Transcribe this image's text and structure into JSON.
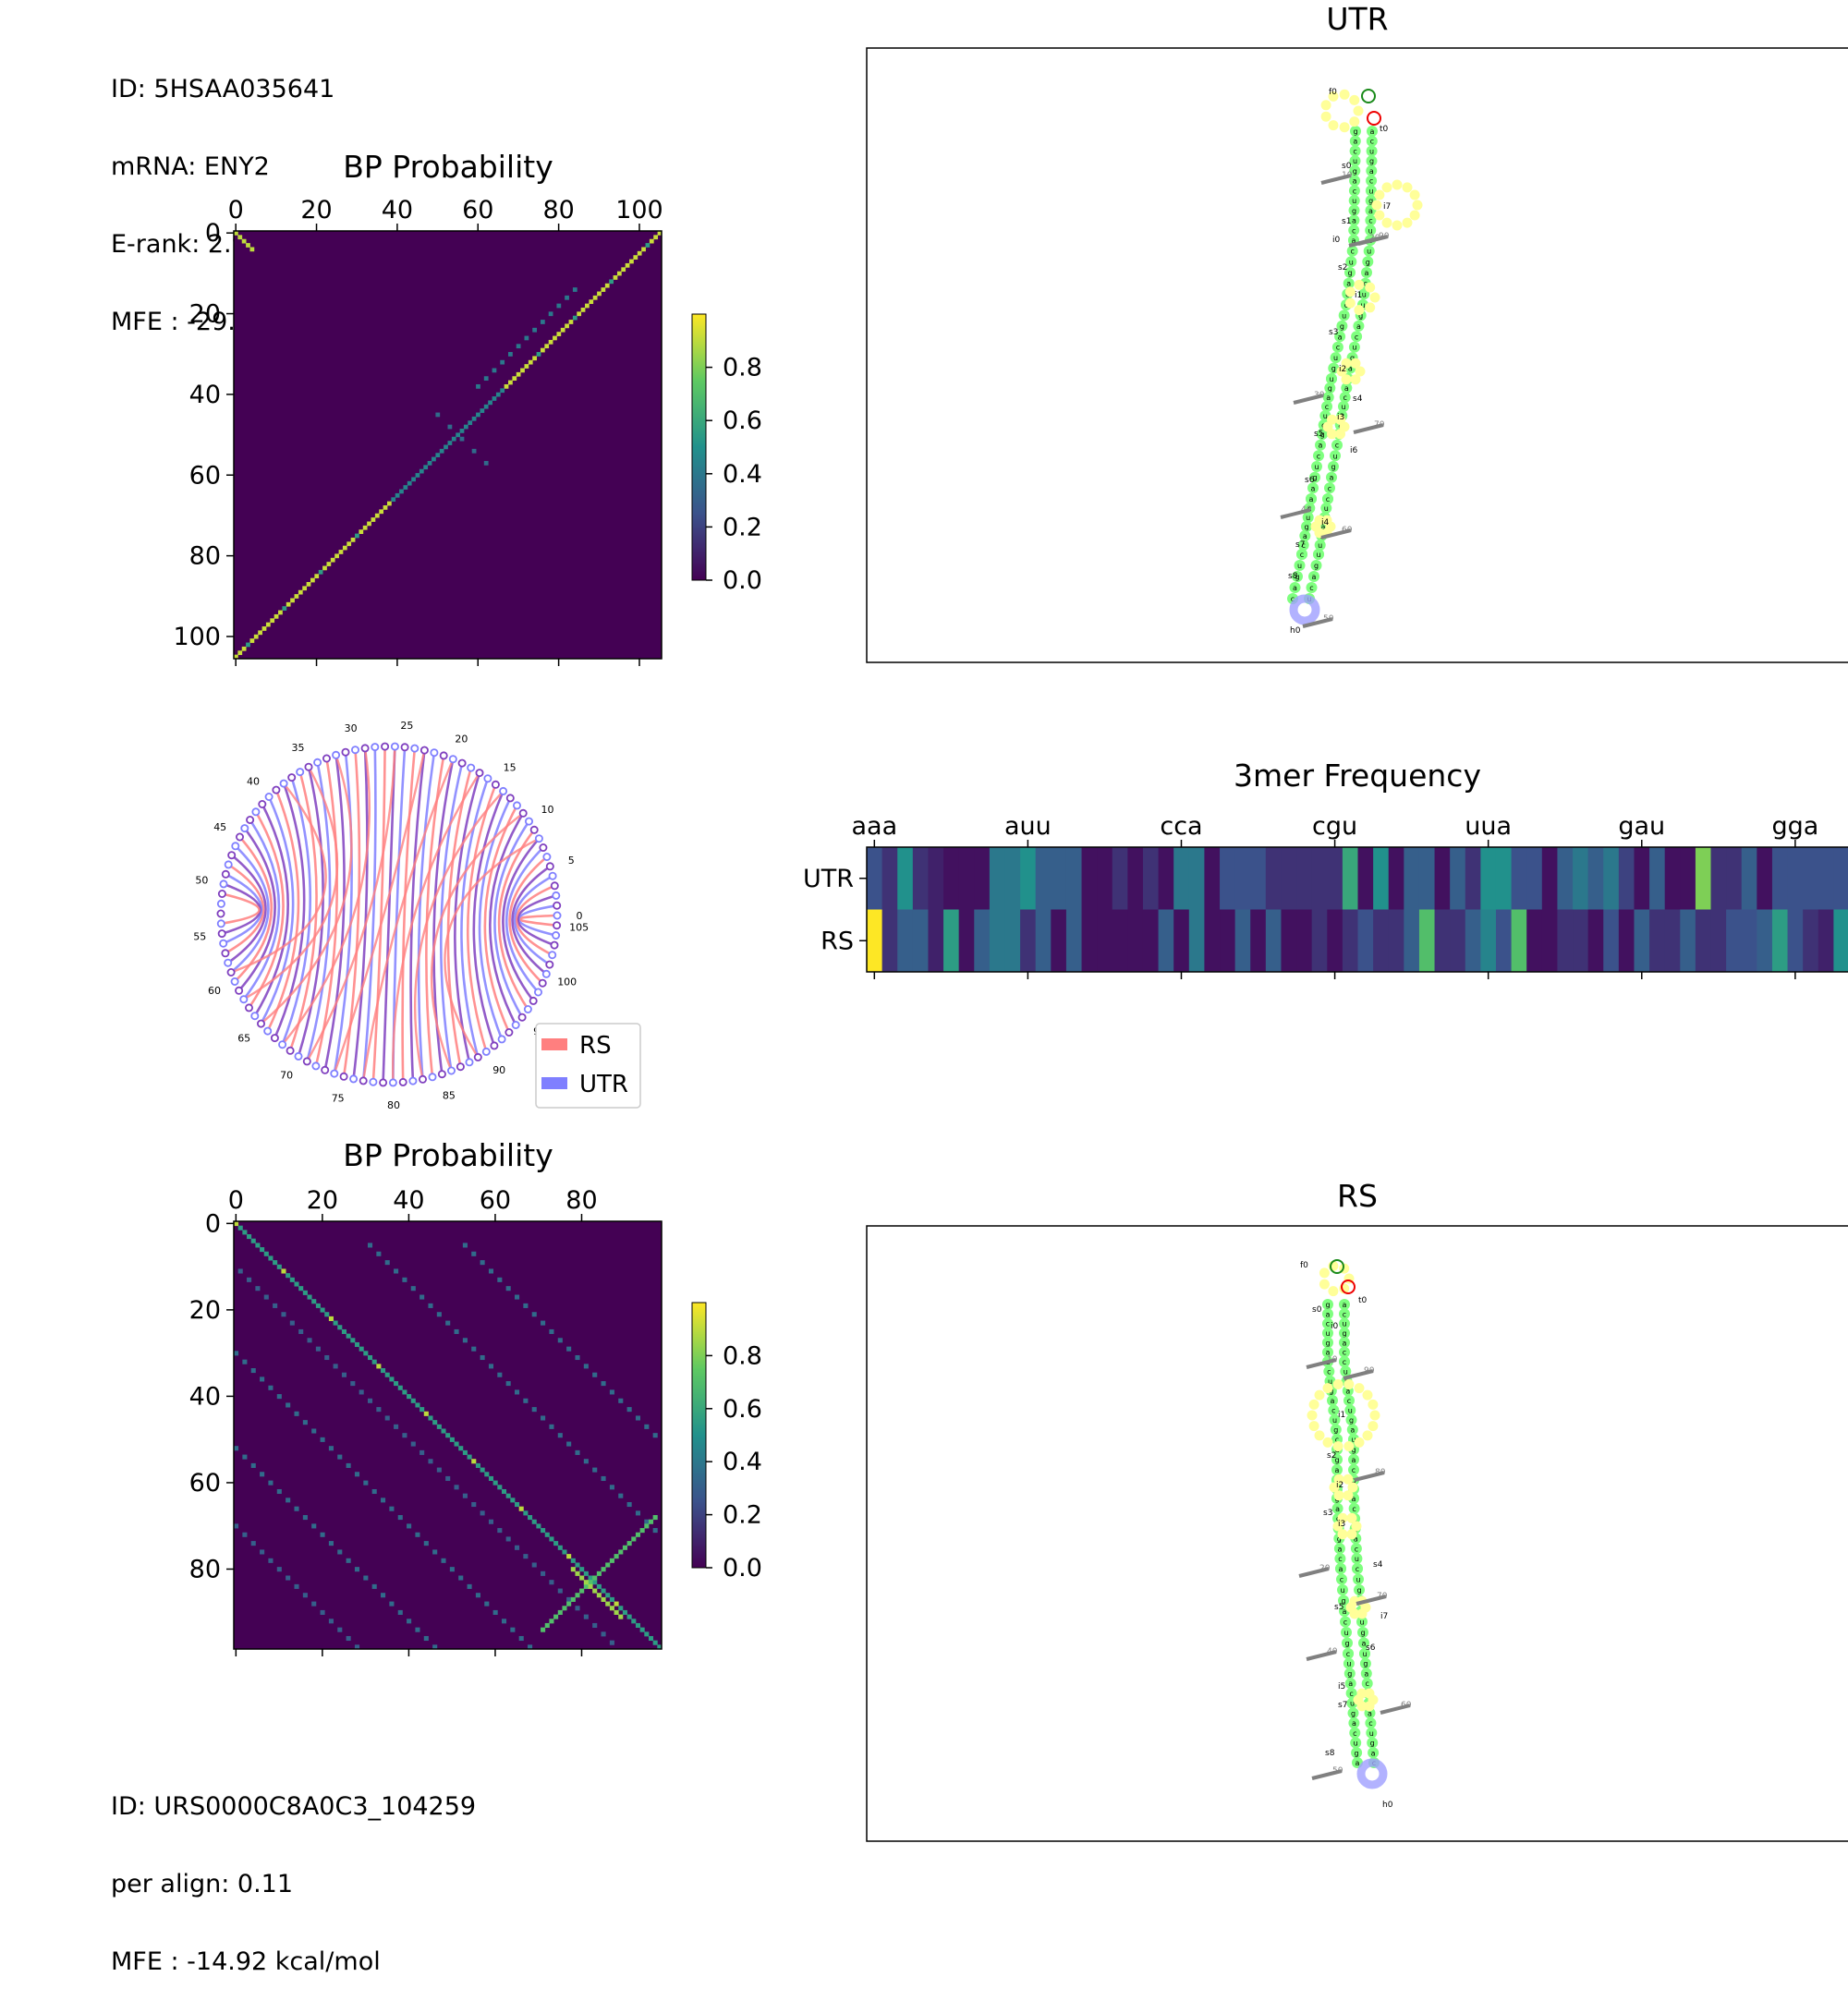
{
  "top_info": {
    "id": "ID: 5HSAA035641",
    "mrna": "mRNA: ENY2",
    "erank": "E-rank: 2.95",
    "mfe": "MFE : -29.82 kcal/mol"
  },
  "bottom_info": {
    "id": "ID: URS0000C8A0C3_104259",
    "align": "per align: 0.11",
    "mfe": "MFE : -14.92 kcal/mol"
  },
  "colors": {
    "rs": "#ff7f7f",
    "utr": "#7f7fff",
    "both": "#7f3fbf",
    "stem": "#7fff7f",
    "loop": "#ffff99",
    "hairpin": "#9f9fff"
  },
  "chart_data": [
    {
      "type": "heatmap",
      "title": "BP Probability",
      "size": 106,
      "xticks": [
        0,
        20,
        40,
        60,
        80,
        100
      ],
      "yticks": [
        0,
        20,
        40,
        60,
        80,
        100
      ],
      "colorbar_ticks": [
        "0.0",
        "0.2",
        "0.4",
        "0.6",
        "0.8"
      ],
      "colorbar_range": [
        0,
        1
      ],
      "structure": "UTR hairpin, diagonal pairs i+j=105, secondary diagonal i+j=97"
    },
    {
      "type": "heatmap",
      "title": "BP Probability",
      "size": 99,
      "xticks": [
        0,
        20,
        40,
        60,
        80
      ],
      "yticks": [
        0,
        20,
        40,
        60,
        80
      ],
      "colorbar_ticks": [
        "0.0",
        "0.2",
        "0.4",
        "0.6",
        "0.8"
      ],
      "colorbar_range": [
        0,
        1
      ]
    },
    {
      "type": "arc",
      "tick_labels": [
        "0",
        "5",
        "10",
        "15",
        "20",
        "25",
        "30",
        "35",
        "40",
        "45",
        "50",
        "55",
        "60",
        "65",
        "70",
        "75",
        "80",
        "85",
        "90",
        "95",
        "100",
        "105"
      ],
      "legend": [
        "RS",
        "UTR"
      ]
    },
    {
      "type": "heatmap",
      "title": "3mer Frequency",
      "rows": [
        "UTR",
        "RS"
      ],
      "xtick_labels": [
        "aaa",
        "auu",
        "cca",
        "cgu",
        "uua",
        "gau",
        "gga"
      ],
      "utr_values": [
        0.25,
        0.15,
        0.5,
        0.15,
        0.1,
        0.05,
        0.05,
        0.05,
        0.4,
        0.4,
        0.5,
        0.3,
        0.3,
        0.3,
        0.05,
        0.05,
        0.15,
        0.05,
        0.15,
        0.05,
        0.4,
        0.4,
        0.05,
        0.25,
        0.25,
        0.25,
        0.15,
        0.15,
        0.15,
        0.15,
        0.15,
        0.6,
        0.05,
        0.5,
        0.05,
        0.3,
        0.3,
        0.05,
        0.3,
        0.15,
        0.5,
        0.5,
        0.25,
        0.25,
        0.05,
        0.3,
        0.4,
        0.3,
        0.4,
        0.2,
        0.05,
        0.3,
        0.05,
        0.05,
        0.8,
        0.15,
        0.15,
        0.3,
        0.05,
        0.25,
        0.25,
        0.25,
        0.25,
        0.25
      ],
      "rs_values": [
        1.0,
        0.15,
        0.3,
        0.3,
        0.1,
        0.55,
        0.05,
        0.3,
        0.4,
        0.4,
        0.15,
        0.3,
        0.05,
        0.3,
        0.05,
        0.05,
        0.05,
        0.05,
        0.05,
        0.3,
        0.05,
        0.4,
        0.05,
        0.05,
        0.3,
        0.05,
        0.3,
        0.05,
        0.05,
        0.15,
        0.05,
        0.15,
        0.25,
        0.15,
        0.15,
        0.3,
        0.7,
        0.15,
        0.15,
        0.3,
        0.45,
        0.25,
        0.7,
        0.05,
        0.05,
        0.15,
        0.15,
        0.05,
        0.25,
        0.05,
        0.3,
        0.15,
        0.15,
        0.3,
        0.15,
        0.15,
        0.25,
        0.25,
        0.3,
        0.55,
        0.25,
        0.15,
        0.1,
        0.5
      ]
    },
    {
      "type": "structure",
      "title": "UTR",
      "labels": [
        "f0",
        "t0",
        "s0",
        "s1",
        "s2",
        "s3",
        "s4",
        "s5",
        "s6",
        "s7",
        "s8",
        "i0",
        "i1",
        "i2",
        "i3",
        "i4",
        "i6",
        "i7",
        "h0",
        "10",
        "20",
        "30",
        "40",
        "50",
        "60",
        "70",
        "90"
      ]
    },
    {
      "type": "structure",
      "title": "RS",
      "labels": [
        "f0",
        "t0",
        "s0",
        "s2",
        "s3",
        "s4",
        "s5",
        "s6",
        "s7",
        "s8",
        "i0",
        "i1",
        "i2",
        "i3",
        "i5",
        "i7",
        "h0",
        "10",
        "20",
        "40",
        "50",
        "60",
        "70",
        "80",
        "90"
      ]
    }
  ]
}
